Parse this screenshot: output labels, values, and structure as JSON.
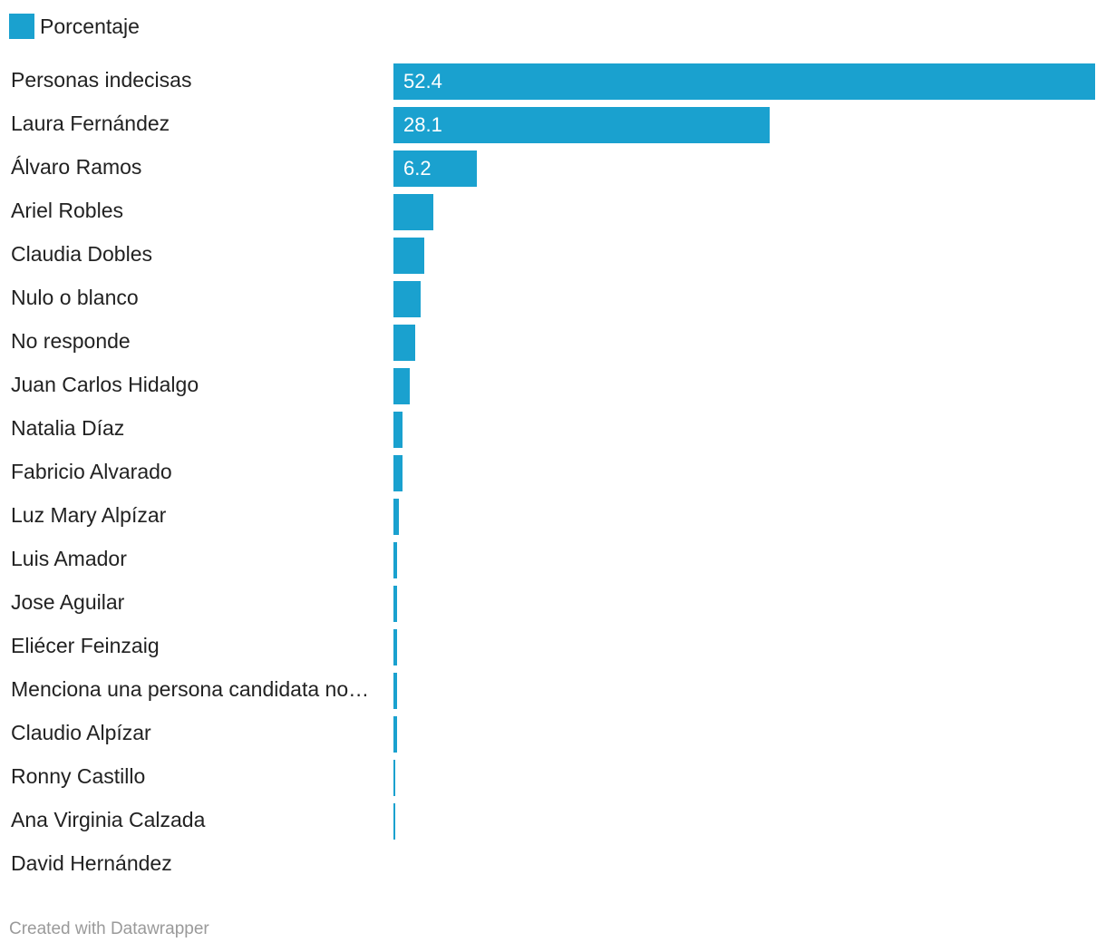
{
  "colors": {
    "bar": "#1aa1cf",
    "text": "#222222",
    "footer": "#9a9a9a"
  },
  "legend": {
    "label": "Porcentaje"
  },
  "footer": {
    "credit": "Created with Datawrapper"
  },
  "chart_data": {
    "type": "bar",
    "orientation": "horizontal",
    "title": "",
    "xlabel": "",
    "ylabel": "",
    "xlim": [
      0,
      52.4
    ],
    "grid": false,
    "legend_position": "top-left",
    "series": [
      {
        "name": "Porcentaje",
        "values": [
          52.4,
          28.1,
          6.2,
          3.0,
          2.3,
          2.0,
          1.6,
          1.2,
          0.7,
          0.7,
          0.4,
          0.3,
          0.3,
          0.3,
          0.3,
          0.3,
          0.1,
          0.1,
          0.0
        ]
      }
    ],
    "categories": [
      "Personas indecisas",
      "Laura Fernández",
      "Álvaro Ramos",
      "Ariel Robles",
      "Claudia Dobles",
      "Nulo o blanco",
      "No responde",
      "Juan Carlos Hidalgo",
      "Natalia Díaz",
      "Fabricio Alvarado",
      "Luz Mary Alpízar",
      "Luis Amador",
      "Jose Aguilar",
      "Eliécer Feinzaig",
      "Menciona una persona candidata no…",
      "Claudio Alpízar",
      "Ronny Castillo",
      "Ana Virginia Calzada",
      "David Hernández"
    ],
    "value_labels": [
      "52.4",
      "28.1",
      "6.2",
      "",
      "",
      "",
      "",
      "",
      "",
      "",
      "",
      "",
      "",
      "",
      "",
      "",
      "",
      "",
      ""
    ]
  }
}
